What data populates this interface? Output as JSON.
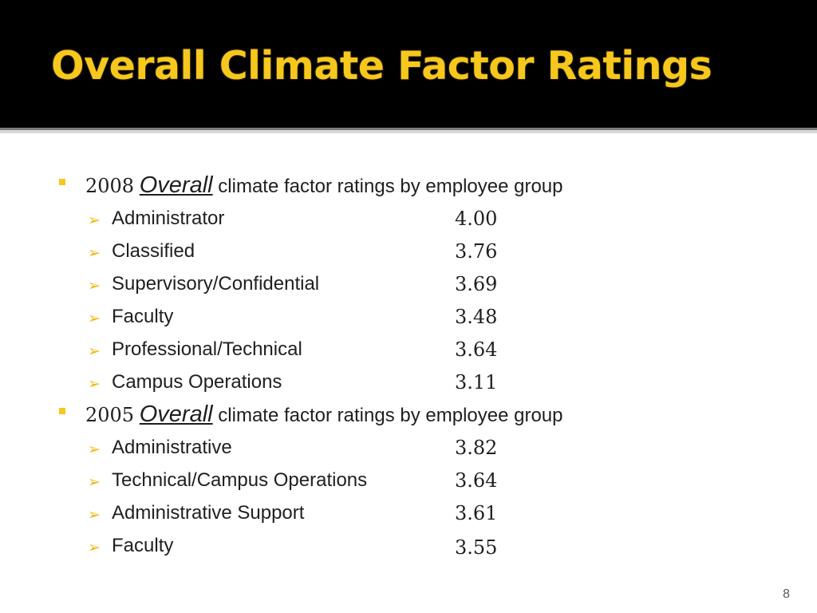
{
  "slide": {
    "title": "Overall Climate Factor Ratings",
    "page_number": "8",
    "accent_color": "#f6c71d",
    "title_bar_color": "#000000",
    "sections": [
      {
        "year": "2008",
        "emphasis": "Overall",
        "caption": "climate factor ratings by employee group",
        "items": [
          {
            "label": "Administrator",
            "value": "4.00"
          },
          {
            "label": "Classified",
            "value": "3.76"
          },
          {
            "label": "Supervisory/Confidential",
            "value": "3.69"
          },
          {
            "label": "Faculty",
            "value": "3.48"
          },
          {
            "label": "Professional/Technical",
            "value": "3.64"
          },
          {
            "label": "Campus Operations",
            "value": "3.11"
          }
        ]
      },
      {
        "year": "2005",
        "emphasis": "Overall",
        "caption": "climate factor ratings by employee group",
        "items": [
          {
            "label": "Administrative",
            "value": "3.82"
          },
          {
            "label": "Technical/Campus Operations",
            "value": "3.64"
          },
          {
            "label": "Administrative Support",
            "value": "3.61"
          },
          {
            "label": "Faculty",
            "value": "3.55"
          }
        ]
      }
    ]
  }
}
